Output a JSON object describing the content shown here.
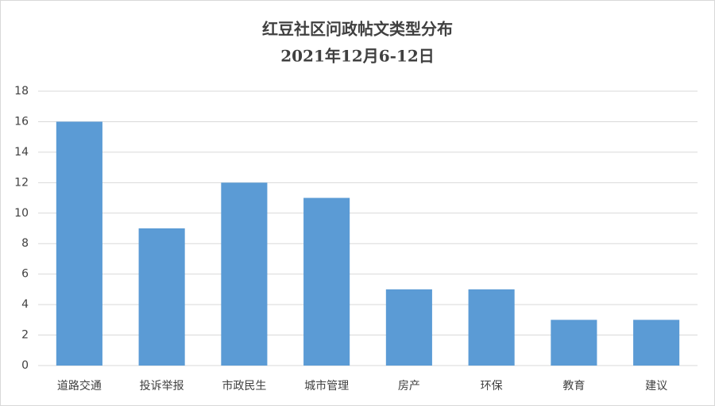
{
  "chart_data": {
    "type": "bar",
    "title": "红豆社区问政帖文类型分布",
    "subtitle": "2021年12月6-12日",
    "categories": [
      "道路交通",
      "投诉举报",
      "市政民生",
      "城市管理",
      "房产",
      "环保",
      "教育",
      "建议"
    ],
    "values": [
      16,
      9,
      12,
      11,
      5,
      5,
      3,
      3
    ],
    "color": "#5b9bd5",
    "ylim": [
      0,
      18
    ],
    "yticks": [
      0,
      2,
      4,
      6,
      8,
      10,
      12,
      14,
      16,
      18
    ],
    "grid": true
  }
}
